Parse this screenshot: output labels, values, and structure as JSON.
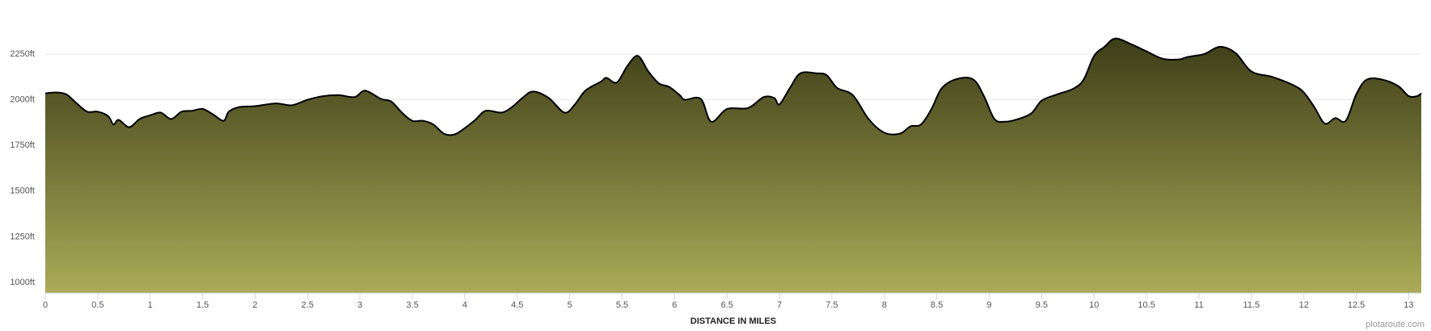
{
  "chart_data": {
    "type": "area",
    "xlabel": "DISTANCE IN MILES",
    "credit": "plotaroute.com",
    "x": [
      0,
      0.1,
      0.2,
      0.3,
      0.4,
      0.5,
      0.6,
      0.65,
      0.7,
      0.8,
      0.9,
      1.0,
      1.1,
      1.2,
      1.3,
      1.4,
      1.5,
      1.6,
      1.7,
      1.75,
      1.85,
      2.0,
      2.2,
      2.35,
      2.5,
      2.65,
      2.8,
      2.95,
      3.05,
      3.2,
      3.3,
      3.4,
      3.5,
      3.6,
      3.7,
      3.8,
      3.9,
      4.0,
      4.1,
      4.2,
      4.35,
      4.45,
      4.55,
      4.65,
      4.8,
      4.95,
      5.05,
      5.15,
      5.3,
      5.35,
      5.45,
      5.55,
      5.65,
      5.75,
      5.85,
      5.95,
      6.05,
      6.1,
      6.25,
      6.35,
      6.5,
      6.7,
      6.85,
      6.95,
      7.0,
      7.1,
      7.2,
      7.35,
      7.45,
      7.55,
      7.7,
      7.85,
      8.0,
      8.15,
      8.25,
      8.35,
      8.45,
      8.55,
      8.7,
      8.85,
      8.95,
      9.05,
      9.15,
      9.25,
      9.4,
      9.5,
      9.65,
      9.8,
      9.9,
      10.0,
      10.1,
      10.2,
      10.35,
      10.5,
      10.65,
      10.8,
      10.9,
      11.05,
      11.2,
      11.35,
      11.5,
      11.7,
      11.9,
      12.0,
      12.1,
      12.2,
      12.3,
      12.4,
      12.5,
      12.6,
      12.75,
      12.9,
      13.0,
      13.08,
      13.12
    ],
    "series": [
      {
        "color": "#000000",
        "values": [
          2035,
          2040,
          2030,
          1980,
          1935,
          1935,
          1910,
          1865,
          1890,
          1850,
          1895,
          1915,
          1930,
          1895,
          1935,
          1940,
          1950,
          1920,
          1885,
          1935,
          1960,
          1965,
          1980,
          1970,
          2000,
          2020,
          2025,
          2015,
          2050,
          2005,
          1990,
          1930,
          1885,
          1885,
          1865,
          1815,
          1810,
          1845,
          1890,
          1940,
          1930,
          1960,
          2010,
          2045,
          2010,
          1930,
          1975,
          2050,
          2100,
          2120,
          2095,
          2185,
          2240,
          2155,
          2090,
          2070,
          2025,
          2000,
          2005,
          1880,
          1950,
          1955,
          2015,
          2010,
          1975,
          2065,
          2145,
          2145,
          2135,
          2065,
          2025,
          1895,
          1820,
          1815,
          1855,
          1865,
          1950,
          2065,
          2115,
          2110,
          2020,
          1895,
          1880,
          1890,
          1925,
          1995,
          2030,
          2060,
          2110,
          2240,
          2290,
          2335,
          2305,
          2265,
          2225,
          2220,
          2235,
          2250,
          2290,
          2255,
          2155,
          2125,
          2080,
          2040,
          1960,
          1870,
          1900,
          1885,
          2030,
          2110,
          2110,
          2075,
          2020,
          2020,
          2035
        ]
      }
    ],
    "fill_top": "#3d3d18",
    "fill_bottom": "#abab58",
    "xlim": [
      0,
      13.12
    ],
    "ylim": [
      943,
      2400
    ],
    "xticks": [
      0,
      0.5,
      1,
      1.5,
      2,
      2.5,
      3,
      3.5,
      4,
      4.5,
      5,
      5.5,
      6,
      6.5,
      7,
      7.5,
      8,
      8.5,
      9,
      9.5,
      10,
      10.5,
      11,
      11.5,
      12,
      12.5,
      13
    ],
    "yticks": [
      {
        "value": 1000,
        "label": "1000ft"
      },
      {
        "value": 1250,
        "label": "1250ft"
      },
      {
        "value": 1500,
        "label": "1500ft"
      },
      {
        "value": 1750,
        "label": "1750ft"
      },
      {
        "value": 2000,
        "label": "2000ft"
      },
      {
        "value": 2250,
        "label": "2250ft"
      }
    ],
    "grid": true
  }
}
